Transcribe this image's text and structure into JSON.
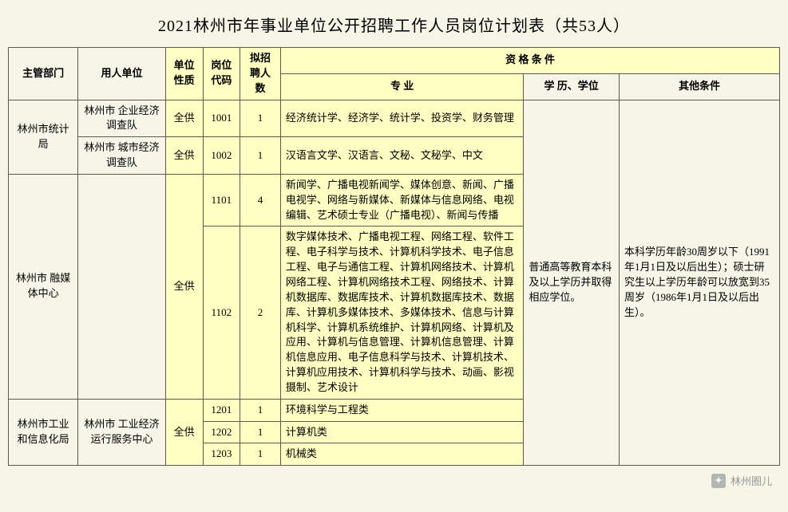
{
  "title": "2021林州市年事业单位公开招聘工作人员岗位计划表（共53人）",
  "headers": {
    "dept": "主管部门",
    "unit": "用人单位",
    "nature": "单位性质",
    "code": "岗位代码",
    "num": "拟招聘人数",
    "qual": "资 格  条 件",
    "major": "专  业",
    "edu": "学  历、学位",
    "other": "其他条件"
  },
  "shared": {
    "edu_req": "普通高等教育本科及以上学历并取得相应学位。",
    "other_req": "本科学历年龄30周岁以下（1991年1月1日及以后出生）；硕士研究生以上学历年龄可以放宽到35周岁（1986年1月1日及以后出生）。"
  },
  "rows": [
    {
      "dept": "林州市统计局",
      "unit": "林州市\n企业经济调查队",
      "nature": "全供",
      "code": "1001",
      "num": "1",
      "major": "经济统计学、经济学、统计学、投资学、财务管理"
    },
    {
      "unit": "林州市\n城市经济调查队",
      "nature": "全供",
      "code": "1002",
      "num": "1",
      "major": "汉语言文学、汉语言、文秘、文秘学、中文"
    },
    {
      "dept": "林州市\n融媒体中心",
      "nature": "全供",
      "code": "1101",
      "num": "4",
      "major": "新闻学、广播电视新闻学、媒体创意、新闻、广播电视学、网络与新媒体、新媒体与信息网络、电视编辑、艺术硕士专业（广播电视）、新闻与传播"
    },
    {
      "code": "1102",
      "num": "2",
      "major": "数字媒体技术、广播电视工程、网络工程、软件工程、电子科学与技术、计算机科学技术、电子信息工程、电子与通信工程、计算机网络技术、计算机网络工程、计算机网络技术工程、网络技术、计算机数据库、数据库技术、计算机数据库技术、数据库、计算机多媒体技术、多媒体技术、信息与计算机科学、计算机系统维护、计算机网络、计算机及应用、计算机与信息管理、计算机信息管理、计算机信息应用、电子信息科学与技术、计算机技术、计算机应用技术、计算机科学与技术、动画、影视摄制、艺术设计"
    },
    {
      "dept": "林州市工业\n和信息化局",
      "unit": "林州市\n工业经济\n运行服务中心",
      "nature": "全供",
      "code": "1201",
      "num": "1",
      "major": "环境科学与工程类"
    },
    {
      "code": "1202",
      "num": "1",
      "major": "计算机类"
    },
    {
      "code": "1203",
      "num": "1",
      "major": "机械类"
    }
  ],
  "highlight_color": "#ffffc4",
  "watermark": "林州圈儿"
}
